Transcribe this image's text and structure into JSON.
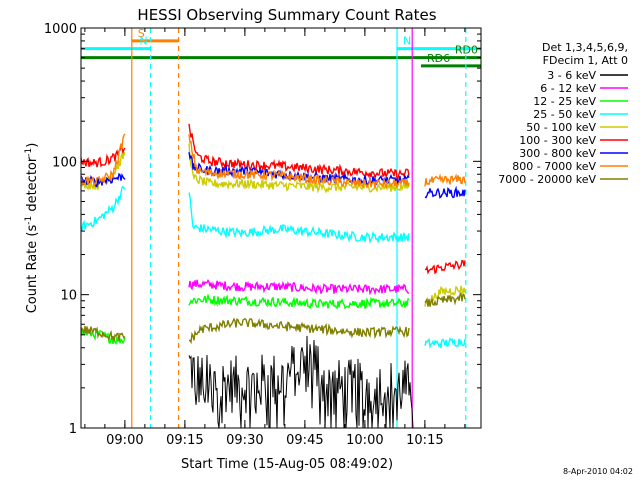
{
  "chart_data": {
    "type": "line",
    "title": "HESSI Observing Summary Count Rates",
    "xlabel": "Start Time (15-Aug-05 08:49:02)",
    "ylabel_main": "Count Rate (s",
    "ylabel_exp": "-1",
    "ylabel_rest": " detector",
    "ylabel_exp2": "-1",
    "ylabel_end": ")",
    "y_scale": "log",
    "ylim": [
      1,
      1000
    ],
    "xlim_minutes": [
      0,
      100
    ],
    "x_ticks": [
      {
        "label": "09:00",
        "minutes": 10.97
      },
      {
        "label": "09:15",
        "minutes": 25.97
      },
      {
        "label": "09:30",
        "minutes": 40.97
      },
      {
        "label": "09:45",
        "minutes": 55.97
      },
      {
        "label": "10:00",
        "minutes": 70.97
      },
      {
        "label": "10:15",
        "minutes": 85.97
      }
    ],
    "y_ticks": [
      {
        "label": "1",
        "value": 1
      },
      {
        "label": "10",
        "value": 10
      },
      {
        "label": "100",
        "value": 100
      },
      {
        "label": "1000",
        "value": 1000
      }
    ],
    "legend_header": [
      "Det 1,3,4,5,6,9,",
      "FDecim 1, Att 0"
    ],
    "legend_position": "right",
    "timestamp": "8-Apr-2010 04:02",
    "series": [
      {
        "name": "3 - 6 keV",
        "color": "#000000",
        "segments": [
          [
            0,
            11
          ],
          [
            27,
            83
          ]
        ],
        "values": [
          [
            27,
            3.0
          ],
          [
            30,
            2.2
          ],
          [
            40,
            2.1
          ],
          [
            50,
            2.3
          ],
          [
            58,
            3.5
          ],
          [
            62,
            2.0
          ],
          [
            70,
            2.0
          ],
          [
            80,
            2.0
          ],
          [
            83,
            2.0
          ]
        ]
      },
      {
        "name": "6 - 12 keV",
        "color": "#ff00ff",
        "segments": [
          [
            27,
            82
          ]
        ],
        "values": [
          [
            27,
            12
          ],
          [
            30,
            12
          ],
          [
            40,
            11.5
          ],
          [
            50,
            11.5
          ],
          [
            60,
            11
          ],
          [
            70,
            11
          ],
          [
            80,
            11
          ],
          [
            82,
            11
          ]
        ]
      },
      {
        "name": "12 - 25 keV",
        "color": "#00ff00",
        "segments": [
          [
            0,
            11
          ],
          [
            27,
            82
          ]
        ],
        "values": [
          [
            0,
            5.2
          ],
          [
            5,
            5.0
          ],
          [
            8,
            4.6
          ],
          [
            11,
            4.6
          ],
          [
            27,
            9.0
          ],
          [
            30,
            9.2
          ],
          [
            40,
            9.0
          ],
          [
            50,
            8.8
          ],
          [
            60,
            8.5
          ],
          [
            70,
            8.6
          ],
          [
            80,
            8.6
          ],
          [
            82,
            8.6
          ]
        ]
      },
      {
        "name": "25 - 50 keV",
        "color": "#00ffff",
        "segments": [
          [
            0,
            11
          ],
          [
            27,
            82
          ],
          [
            86,
            96
          ]
        ],
        "values": [
          [
            0,
            32
          ],
          [
            4,
            36
          ],
          [
            8,
            45
          ],
          [
            11,
            65
          ],
          [
            27,
            60
          ],
          [
            28,
            32
          ],
          [
            35,
            30
          ],
          [
            40,
            29
          ],
          [
            50,
            31
          ],
          [
            60,
            29
          ],
          [
            70,
            27
          ],
          [
            80,
            27
          ],
          [
            82,
            27
          ],
          [
            86,
            4.3
          ],
          [
            90,
            4.3
          ],
          [
            96,
            4.5
          ]
        ]
      },
      {
        "name": "50 - 100 keV",
        "color": "#cccc00",
        "segments": [
          [
            0,
            11
          ],
          [
            27,
            82
          ],
          [
            86,
            96
          ]
        ],
        "values": [
          [
            0,
            68
          ],
          [
            4,
            66
          ],
          [
            8,
            80
          ],
          [
            11,
            115
          ],
          [
            27,
            130
          ],
          [
            28,
            75
          ],
          [
            32,
            68
          ],
          [
            40,
            68
          ],
          [
            50,
            66
          ],
          [
            60,
            64
          ],
          [
            70,
            64
          ],
          [
            80,
            64
          ],
          [
            82,
            65
          ],
          [
            86,
            8.5
          ],
          [
            90,
            10.5
          ],
          [
            96,
            11
          ]
        ]
      },
      {
        "name": "100 - 300 keV",
        "color": "#ff0000",
        "segments": [
          [
            0,
            11
          ],
          [
            27,
            82
          ],
          [
            86,
            96
          ]
        ],
        "values": [
          [
            0,
            100
          ],
          [
            3,
            97
          ],
          [
            6,
            100
          ],
          [
            9,
            110
          ],
          [
            11,
            130
          ],
          [
            27,
            180
          ],
          [
            29,
            110
          ],
          [
            32,
            100
          ],
          [
            40,
            95
          ],
          [
            50,
            92
          ],
          [
            60,
            87
          ],
          [
            70,
            83
          ],
          [
            80,
            80
          ],
          [
            82,
            82
          ],
          [
            86,
            15
          ],
          [
            90,
            16
          ],
          [
            96,
            17
          ]
        ]
      },
      {
        "name": "300 - 800 keV",
        "color": "#0000ff",
        "segments": [
          [
            0,
            11
          ],
          [
            27,
            82
          ],
          [
            86,
            96
          ]
        ],
        "values": [
          [
            0,
            72
          ],
          [
            4,
            70
          ],
          [
            8,
            74
          ],
          [
            11,
            78
          ],
          [
            27,
            120
          ],
          [
            28,
            90
          ],
          [
            32,
            85
          ],
          [
            40,
            85
          ],
          [
            50,
            80
          ],
          [
            60,
            75
          ],
          [
            70,
            72
          ],
          [
            80,
            72
          ],
          [
            82,
            72
          ],
          [
            86,
            58
          ],
          [
            90,
            58
          ],
          [
            96,
            58
          ]
        ]
      },
      {
        "name": "800 - 7000 keV",
        "color": "#ff8000",
        "segments": [
          [
            0,
            11
          ],
          [
            27,
            82
          ],
          [
            86,
            96
          ]
        ],
        "values": [
          [
            0,
            72
          ],
          [
            4,
            70
          ],
          [
            8,
            80
          ],
          [
            11,
            160
          ],
          [
            27,
            150
          ],
          [
            29,
            85
          ],
          [
            32,
            82
          ],
          [
            40,
            80
          ],
          [
            50,
            78
          ],
          [
            60,
            72
          ],
          [
            70,
            68
          ],
          [
            80,
            68
          ],
          [
            82,
            68
          ],
          [
            86,
            70
          ],
          [
            90,
            72
          ],
          [
            96,
            73
          ]
        ]
      },
      {
        "name": "7000 - 20000 keV",
        "color": "#808000",
        "segments": [
          [
            0,
            11
          ],
          [
            27,
            82
          ],
          [
            86,
            96
          ]
        ],
        "values": [
          [
            0,
            5.5
          ],
          [
            5,
            5.2
          ],
          [
            8,
            4.8
          ],
          [
            11,
            4.8
          ],
          [
            27,
            4.5
          ],
          [
            30,
            5.5
          ],
          [
            40,
            6.2
          ],
          [
            50,
            5.8
          ],
          [
            60,
            5.5
          ],
          [
            70,
            5.2
          ],
          [
            80,
            5.3
          ],
          [
            82,
            5.3
          ],
          [
            86,
            8.5
          ],
          [
            90,
            9
          ],
          [
            96,
            9.5
          ]
        ]
      }
    ],
    "flags": [
      {
        "label": "S",
        "color": "#ff8000",
        "y_value": 800,
        "start": 12.7,
        "end": 24.4
      },
      {
        "label": "N",
        "color": "#00ffff",
        "y_value": 700,
        "start": 0,
        "end": 17.4
      },
      {
        "label": "N",
        "color": "#00ffff",
        "y_value": 700,
        "start": 79,
        "end": 100
      },
      {
        "label": "RD0",
        "color": "#008000",
        "y_value": 600,
        "start": 0,
        "end": 100
      },
      {
        "label": "RD6",
        "color": "#008000",
        "y_value": 520,
        "start": 85,
        "end": 100
      }
    ],
    "vertical_markers": [
      {
        "minutes": 12.7,
        "color": "#ff8000",
        "style": "solid"
      },
      {
        "minutes": 17.4,
        "color": "#00ffff",
        "style": "dashed"
      },
      {
        "minutes": 24.4,
        "color": "#ff8000",
        "style": "dashed"
      },
      {
        "minutes": 79.0,
        "color": "#00ffff",
        "style": "solid"
      },
      {
        "minutes": 82.8,
        "color": "#ff00ff",
        "style": "solid"
      },
      {
        "minutes": 96.2,
        "color": "#00ffff",
        "style": "dashed"
      }
    ],
    "grid": false
  }
}
